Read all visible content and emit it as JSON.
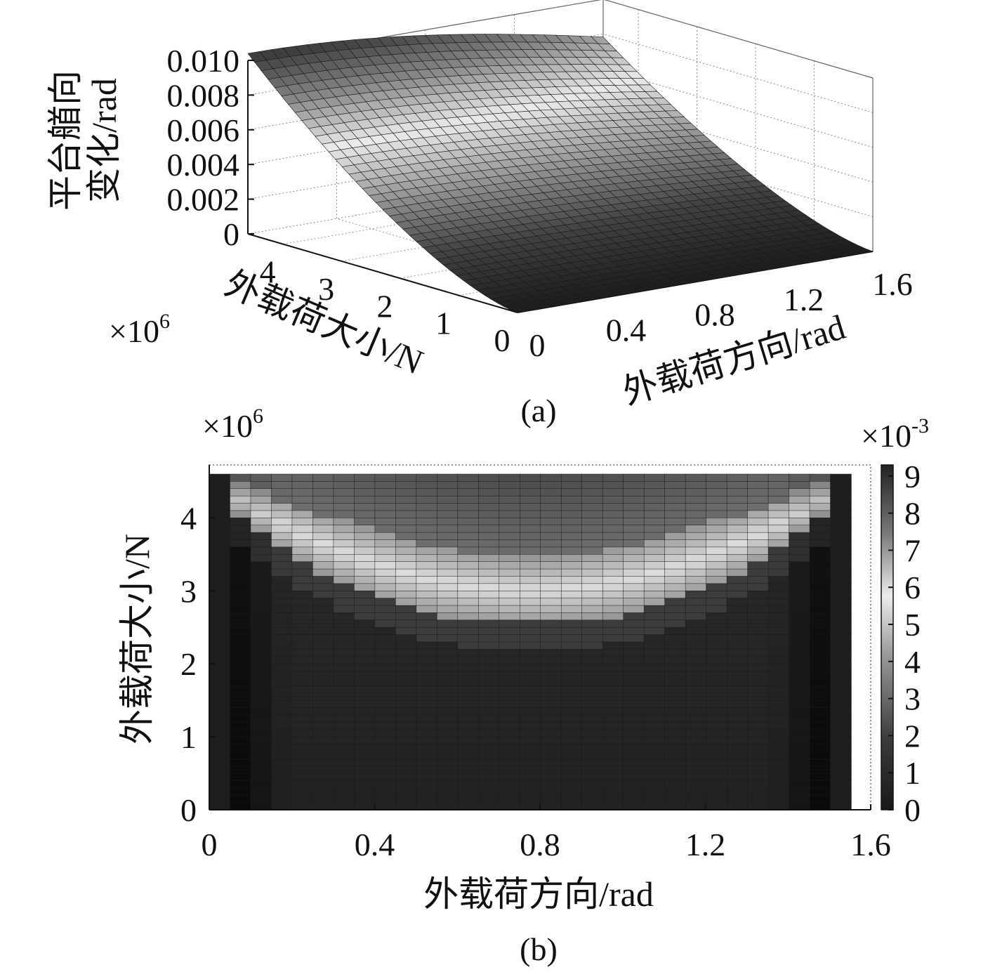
{
  "figure": {
    "caption_a": "(a)",
    "caption_b": "(b)"
  },
  "chart_data": [
    {
      "id": "a",
      "type": "surface",
      "zlabel_line1": "平台艏向",
      "zlabel_line2": "变化/rad",
      "xlabel": "外载荷方向/rad",
      "ylabel": "外载荷大小/N",
      "y_multiplier": "×10",
      "y_multiplier_exp": "6",
      "xlim": [
        0,
        1.6
      ],
      "ylim": [
        0,
        4.6
      ],
      "zlim": [
        0,
        0.01
      ],
      "x_ticks": [
        "0",
        "0.4",
        "0.8",
        "1.2",
        "1.6"
      ],
      "y_ticks": [
        "0",
        "1",
        "2",
        "3",
        "4"
      ],
      "z_ticks": [
        "0",
        "0.002",
        "0.004",
        "0.006",
        "0.008",
        "0.010"
      ],
      "grid": true,
      "colormap": "gray",
      "peak": {
        "x": 0.0,
        "y": 4.6,
        "z": 0.0104
      }
    },
    {
      "id": "b",
      "type": "heatmap",
      "xlabel": "外载荷方向/rad",
      "ylabel": "外载荷大小/N",
      "y_multiplier": "×10",
      "y_multiplier_exp": "6",
      "colorbar_multiplier": "×10",
      "colorbar_multiplier_exp": "-3",
      "xlim": [
        0,
        1.6
      ],
      "ylim": [
        0,
        4.6
      ],
      "x_ticks": [
        "0",
        "0.4",
        "0.8",
        "1.2",
        "1.6"
      ],
      "y_ticks": [
        "0",
        "1",
        "2",
        "3",
        "4"
      ],
      "colorbar_ticks": [
        "0",
        "1",
        "2",
        "3",
        "4",
        "5",
        "6",
        "7",
        "8",
        "9"
      ],
      "colorbar_range": [
        0,
        9.3
      ],
      "grid_cols": 31,
      "grid_rows": 46,
      "colormap": "gray"
    }
  ]
}
